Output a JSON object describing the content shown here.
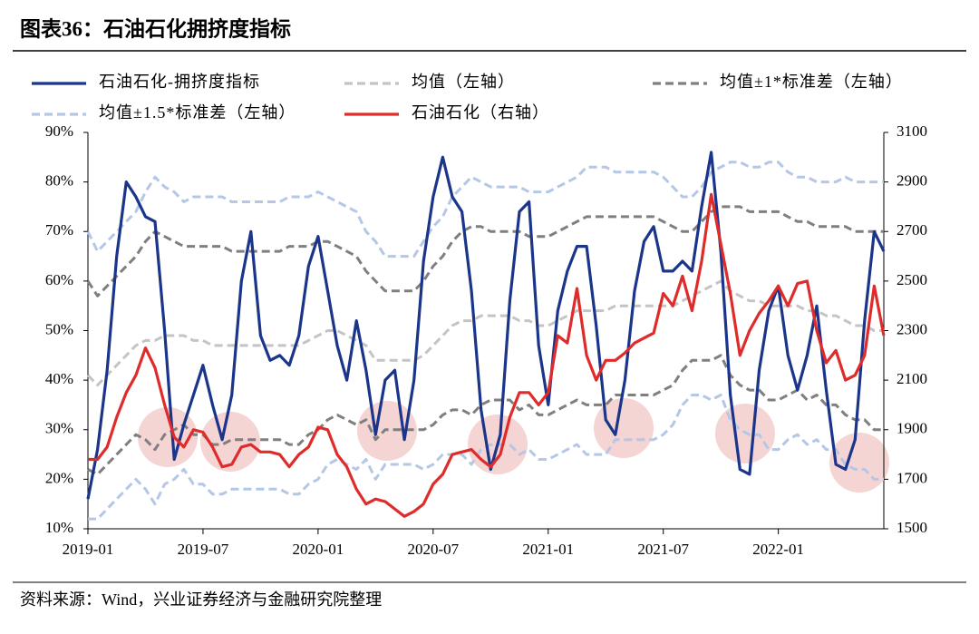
{
  "chart_data": {
    "type": "line",
    "title": "图表36：石油石化拥挤度指标",
    "source": "资料来源：Wind，兴业证券经济与金融研究院整理",
    "categories": [
      "2019-01",
      null,
      null,
      null,
      null,
      null,
      null,
      null,
      null,
      null,
      null,
      null,
      "2019-07",
      null,
      null,
      null,
      null,
      null,
      null,
      null,
      null,
      null,
      null,
      null,
      "2020-01",
      null,
      null,
      null,
      null,
      null,
      null,
      null,
      null,
      null,
      null,
      null,
      "2020-07",
      null,
      null,
      null,
      null,
      null,
      null,
      null,
      null,
      null,
      null,
      null,
      "2021-01",
      null,
      null,
      null,
      null,
      null,
      null,
      null,
      null,
      null,
      null,
      null,
      "2021-07",
      null,
      null,
      null,
      null,
      null,
      null,
      null,
      null,
      null,
      null,
      null,
      "2022-01",
      null,
      null,
      null,
      null,
      null,
      null,
      null,
      null,
      null,
      null,
      null
    ],
    "ylim": [
      10,
      90
    ],
    "yticks": [
      {
        "value": 10,
        "label": "10%"
      },
      {
        "value": 20,
        "label": "20%"
      },
      {
        "value": 30,
        "label": "30%"
      },
      {
        "value": 40,
        "label": "40%"
      },
      {
        "value": 50,
        "label": "50%"
      },
      {
        "value": 60,
        "label": "60%"
      },
      {
        "value": 70,
        "label": "70%"
      },
      {
        "value": 80,
        "label": "80%"
      },
      {
        "value": 90,
        "label": "90%"
      }
    ],
    "y2lim": [
      1500,
      3100
    ],
    "y2ticks": [
      1500,
      1700,
      1900,
      2100,
      2300,
      2500,
      2700,
      2900,
      3100
    ],
    "series": [
      {
        "name": "石油石化-拥挤度指标",
        "color": "#1b358a",
        "dash": false,
        "values": [
          16,
          26,
          42,
          65,
          80,
          77,
          73,
          72,
          50,
          24,
          31,
          37,
          43,
          35,
          28,
          37,
          60,
          70,
          49,
          44,
          45,
          43,
          49,
          63,
          69,
          58,
          47,
          40,
          52,
          42,
          29,
          40,
          42,
          28,
          40,
          64,
          77,
          85,
          77,
          74,
          58,
          34,
          22,
          29,
          56,
          74,
          76,
          47,
          35,
          54,
          62,
          67,
          67,
          51,
          32,
          29,
          40,
          58,
          68,
          71,
          62,
          62,
          64,
          62,
          75,
          86,
          66,
          37,
          22,
          21,
          42,
          54,
          59,
          45,
          38,
          45,
          55,
          38,
          23,
          22,
          28,
          52,
          70,
          66
        ]
      },
      {
        "name": "均值（左轴）",
        "color": "#c4c4c4",
        "dash": true,
        "values": [
          41,
          39,
          41,
          43,
          45,
          47,
          48,
          48,
          49,
          49,
          49,
          48,
          48,
          47,
          47,
          47,
          47,
          47,
          47,
          47,
          47,
          47,
          47,
          48,
          49,
          50,
          50,
          49,
          48,
          47,
          44,
          44,
          44,
          44,
          44,
          45,
          47,
          49,
          51,
          52,
          52,
          53,
          53,
          53,
          53,
          52,
          52,
          51,
          51,
          52,
          53,
          54,
          54,
          54,
          54,
          55,
          55,
          55,
          55,
          55,
          55,
          55,
          56,
          57,
          58,
          59,
          60,
          58,
          57,
          56,
          56,
          55,
          55,
          55,
          55,
          54,
          54,
          53,
          53,
          52,
          51,
          51,
          50,
          50
        ]
      },
      {
        "name": "均值±1*标准差（左轴）",
        "color": "#7f7f7f",
        "dash": true,
        "upper": [
          60,
          57,
          59,
          61,
          63,
          65,
          68,
          70,
          69,
          68,
          67,
          67,
          67,
          67,
          67,
          66,
          66,
          66,
          66,
          66,
          66,
          67,
          67,
          67,
          68,
          68,
          67,
          66,
          65,
          62,
          60,
          58,
          58,
          58,
          58,
          60,
          63,
          65,
          68,
          70,
          71,
          71,
          70,
          70,
          70,
          70,
          69,
          69,
          69,
          70,
          71,
          72,
          73,
          73,
          73,
          73,
          73,
          73,
          73,
          73,
          72,
          71,
          70,
          70,
          72,
          74,
          75,
          75,
          75,
          74,
          74,
          74,
          74,
          73,
          72,
          72,
          71,
          71,
          71,
          71,
          70,
          70,
          70,
          70
        ],
        "lower": [
          22,
          21,
          23,
          25,
          27,
          29,
          28,
          26,
          29,
          30,
          31,
          29,
          29,
          27,
          27,
          28,
          28,
          28,
          28,
          28,
          28,
          27,
          27,
          29,
          30,
          32,
          33,
          32,
          31,
          32,
          28,
          30,
          30,
          30,
          30,
          30,
          31,
          33,
          34,
          34,
          33,
          35,
          36,
          36,
          36,
          34,
          35,
          33,
          33,
          34,
          35,
          36,
          35,
          35,
          35,
          37,
          37,
          37,
          37,
          37,
          38,
          39,
          42,
          44,
          44,
          44,
          45,
          41,
          39,
          38,
          38,
          36,
          36,
          37,
          38,
          36,
          37,
          35,
          35,
          33,
          32,
          32,
          30,
          30
        ]
      },
      {
        "name": "均值±1.5*标准差（左轴）",
        "color": "#b4c7e7",
        "dash": true,
        "upper": [
          70,
          66,
          68,
          70,
          72,
          74,
          78,
          81,
          79,
          78,
          76,
          77,
          77,
          77,
          77,
          76,
          76,
          76,
          76,
          76,
          76,
          77,
          77,
          77,
          78,
          77,
          76,
          75,
          74,
          70,
          68,
          65,
          65,
          65,
          65,
          68,
          71,
          73,
          77,
          79,
          81,
          80,
          79,
          79,
          79,
          79,
          78,
          78,
          78,
          79,
          80,
          81,
          83,
          83,
          83,
          82,
          82,
          82,
          82,
          82,
          81,
          79,
          77,
          77,
          79,
          82,
          83,
          84,
          84,
          83,
          83,
          84,
          84,
          82,
          81,
          81,
          80,
          80,
          80,
          81,
          80,
          80,
          80,
          80
        ],
        "lower": [
          12,
          12,
          14,
          16,
          18,
          20,
          18,
          15,
          19,
          20,
          22,
          19,
          19,
          17,
          17,
          18,
          18,
          18,
          18,
          18,
          18,
          17,
          17,
          19,
          20,
          23,
          24,
          23,
          22,
          24,
          20,
          23,
          23,
          23,
          23,
          22,
          23,
          25,
          25,
          25,
          23,
          26,
          27,
          27,
          27,
          25,
          26,
          24,
          24,
          25,
          26,
          27,
          25,
          25,
          25,
          28,
          28,
          28,
          28,
          28,
          29,
          31,
          35,
          37,
          37,
          36,
          37,
          32,
          30,
          29,
          29,
          26,
          26,
          28,
          29,
          27,
          28,
          26,
          26,
          23,
          22,
          22,
          20,
          20
        ]
      },
      {
        "name": "石油石化（右轴）",
        "color": "#e02b2b",
        "dash": false,
        "axis": "y2",
        "values": [
          1780,
          1780,
          1830,
          1950,
          2050,
          2120,
          2230,
          2150,
          2000,
          1870,
          1830,
          1900,
          1890,
          1830,
          1750,
          1760,
          1830,
          1840,
          1810,
          1810,
          1800,
          1750,
          1800,
          1830,
          1910,
          1900,
          1800,
          1750,
          1660,
          1600,
          1620,
          1610,
          1580,
          1550,
          1570,
          1600,
          1680,
          1720,
          1800,
          1810,
          1820,
          1780,
          1750,
          1800,
          1950,
          2050,
          2050,
          2000,
          2050,
          2280,
          2250,
          2470,
          2200,
          2100,
          2180,
          2180,
          2210,
          2250,
          2270,
          2290,
          2450,
          2400,
          2520,
          2380,
          2580,
          2850,
          2650,
          2450,
          2200,
          2300,
          2370,
          2420,
          2480,
          2400,
          2490,
          2500,
          2300,
          2170,
          2220,
          2100,
          2120,
          2200,
          2480,
          2280
        ]
      }
    ]
  }
}
